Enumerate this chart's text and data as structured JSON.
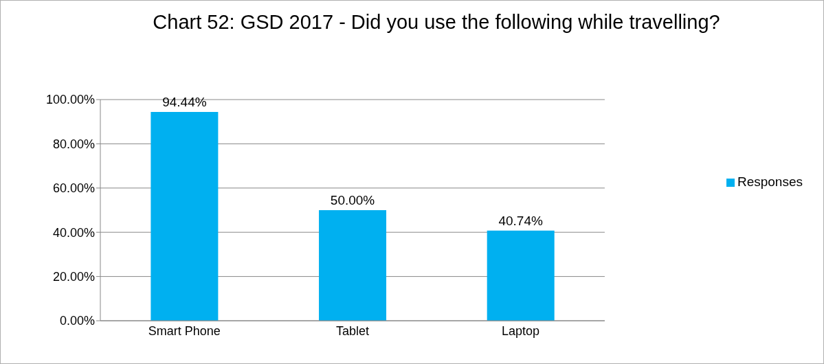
{
  "chart_data": {
    "type": "bar",
    "title": "Chart 52: GSD 2017 - Did you use the following while travelling?",
    "categories": [
      "Smart Phone",
      "Tablet",
      "Laptop"
    ],
    "series": [
      {
        "name": "Responses",
        "color": "#00b0f0",
        "values": [
          94.44,
          50,
          40.74
        ],
        "value_labels": [
          "94.44%",
          "50.00%",
          "40.74%"
        ]
      }
    ],
    "ylim": [
      0,
      100
    ],
    "yticks": [
      {
        "value": 0,
        "label": "0.00%"
      },
      {
        "value": 20,
        "label": "20.00%"
      },
      {
        "value": 40,
        "label": "40.00%"
      },
      {
        "value": 60,
        "label": "60.00%"
      },
      {
        "value": 80,
        "label": "80.00%"
      },
      {
        "value": 100,
        "label": "100.00%"
      }
    ],
    "grid": "y",
    "legend": "right"
  }
}
